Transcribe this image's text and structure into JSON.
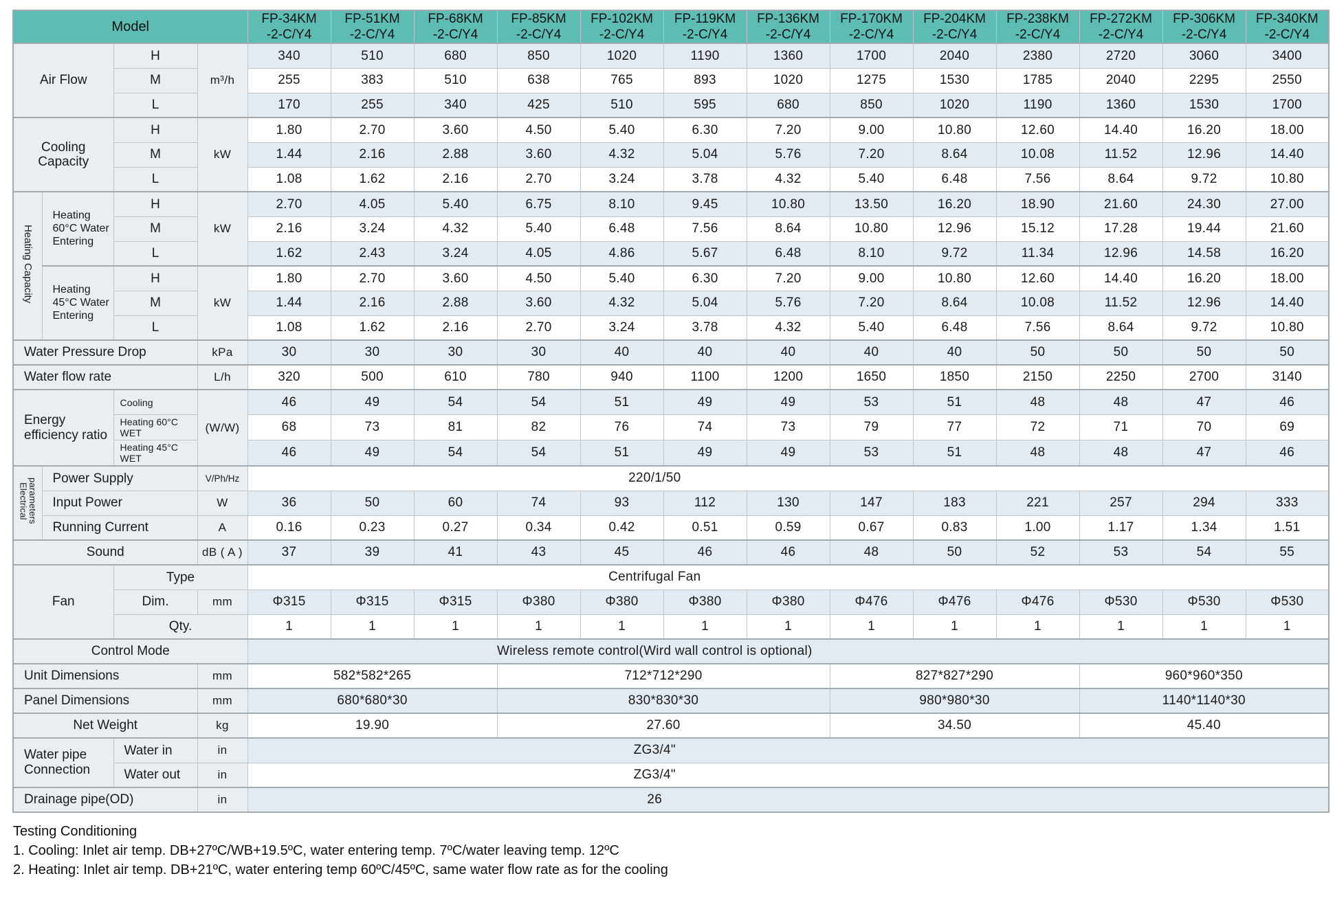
{
  "colors": {
    "header_bg": "#5ebdb2",
    "label_bg": "#e8eef1",
    "stripe_bg": "#e2eaf2",
    "row_white": "#ffffff",
    "grid": "#bfc6cb",
    "grid_heavy": "#a2aab0",
    "text": "#1b1b1b"
  },
  "table": {
    "model_label": "Model",
    "models": [
      {
        "l1": "FP-34KM",
        "l2": "-2-C/Y4"
      },
      {
        "l1": "FP-51KM",
        "l2": "-2-C/Y4"
      },
      {
        "l1": "FP-68KM",
        "l2": "-2-C/Y4"
      },
      {
        "l1": "FP-85KM",
        "l2": "-2-C/Y4"
      },
      {
        "l1": "FP-102KM",
        "l2": "-2-C/Y4"
      },
      {
        "l1": "FP-119KM",
        "l2": "-2-C/Y4"
      },
      {
        "l1": "FP-136KM",
        "l2": "-2-C/Y4"
      },
      {
        "l1": "FP-170KM",
        "l2": "-2-C/Y4"
      },
      {
        "l1": "FP-204KM",
        "l2": "-2-C/Y4"
      },
      {
        "l1": "FP-238KM",
        "l2": "-2-C/Y4"
      },
      {
        "l1": "FP-272KM",
        "l2": "-2-C/Y4"
      },
      {
        "l1": "FP-306KM",
        "l2": "-2-C/Y4"
      },
      {
        "l1": "FP-340KM",
        "l2": "-2-C/Y4"
      }
    ],
    "rows": [
      {
        "cells": [
          {
            "t": "Air Flow",
            "cs": 2,
            "rs": 3
          },
          {
            "t": "H"
          }
        ],
        "unit": {
          "t": "m³/h",
          "rs": 3
        },
        "data": {
          "v": [
            "340",
            "510",
            "680",
            "850",
            "1020",
            "1190",
            "1360",
            "1700",
            "2040",
            "2380",
            "2720",
            "3060",
            "3400"
          ]
        }
      },
      {
        "cells": [
          {
            "t": "M"
          }
        ],
        "data": {
          "v": [
            "255",
            "383",
            "510",
            "638",
            "765",
            "893",
            "1020",
            "1275",
            "1530",
            "1785",
            "2040",
            "2295",
            "2550"
          ]
        }
      },
      {
        "cells": [
          {
            "t": "L"
          }
        ],
        "data": {
          "v": [
            "170",
            "255",
            "340",
            "425",
            "510",
            "595",
            "680",
            "850",
            "1020",
            "1190",
            "1360",
            "1530",
            "1700"
          ]
        }
      },
      {
        "sec": true,
        "cells": [
          {
            "t": "Cooling Capacity",
            "cs": 2,
            "rs": 3
          },
          {
            "t": "H"
          }
        ],
        "unit": {
          "t": "kW",
          "rs": 3
        },
        "data": {
          "v": [
            "1.80",
            "2.70",
            "3.60",
            "4.50",
            "5.40",
            "6.30",
            "7.20",
            "9.00",
            "10.80",
            "12.60",
            "14.40",
            "16.20",
            "18.00"
          ]
        }
      },
      {
        "cells": [
          {
            "t": "M"
          }
        ],
        "data": {
          "v": [
            "1.44",
            "2.16",
            "2.88",
            "3.60",
            "4.32",
            "5.04",
            "5.76",
            "7.20",
            "8.64",
            "10.08",
            "11.52",
            "12.96",
            "14.40"
          ]
        }
      },
      {
        "cells": [
          {
            "t": "L"
          }
        ],
        "data": {
          "v": [
            "1.08",
            "1.62",
            "2.16",
            "2.70",
            "3.24",
            "3.78",
            "4.32",
            "5.40",
            "6.48",
            "7.56",
            "8.64",
            "9.72",
            "10.80"
          ]
        }
      },
      {
        "sec": true,
        "cells": [
          {
            "t": "Heating Capacity",
            "rs": 6,
            "cls": "rot rot6"
          },
          {
            "t": "Heating 60°C Water Entering",
            "rs": 3,
            "cls": "al md"
          },
          {
            "t": "H"
          }
        ],
        "unit": {
          "t": "kW",
          "rs": 3
        },
        "data": {
          "v": [
            "2.70",
            "4.05",
            "5.40",
            "6.75",
            "8.10",
            "9.45",
            "10.80",
            "13.50",
            "16.20",
            "18.90",
            "21.60",
            "24.30",
            "27.00"
          ]
        }
      },
      {
        "cells": [
          {
            "t": "M"
          }
        ],
        "data": {
          "v": [
            "2.16",
            "3.24",
            "4.32",
            "5.40",
            "6.48",
            "7.56",
            "8.64",
            "10.80",
            "12.96",
            "15.12",
            "17.28",
            "19.44",
            "21.60"
          ]
        }
      },
      {
        "cells": [
          {
            "t": "L"
          }
        ],
        "data": {
          "v": [
            "1.62",
            "2.43",
            "3.24",
            "4.05",
            "4.86",
            "5.67",
            "6.48",
            "8.10",
            "9.72",
            "11.34",
            "12.96",
            "14.58",
            "16.20"
          ]
        }
      },
      {
        "sec": true,
        "cells": [
          {
            "t": "Heating 45°C Water Entering",
            "rs": 3,
            "cls": "al md"
          },
          {
            "t": "H"
          }
        ],
        "unit": {
          "t": "kW",
          "rs": 3
        },
        "data": {
          "v": [
            "1.80",
            "2.70",
            "3.60",
            "4.50",
            "5.40",
            "6.30",
            "7.20",
            "9.00",
            "10.80",
            "12.60",
            "14.40",
            "16.20",
            "18.00"
          ]
        }
      },
      {
        "cells": [
          {
            "t": "M"
          }
        ],
        "data": {
          "v": [
            "1.44",
            "2.16",
            "2.88",
            "3.60",
            "4.32",
            "5.04",
            "5.76",
            "7.20",
            "8.64",
            "10.08",
            "11.52",
            "12.96",
            "14.40"
          ]
        }
      },
      {
        "cells": [
          {
            "t": "L"
          }
        ],
        "data": {
          "v": [
            "1.08",
            "1.62",
            "2.16",
            "2.70",
            "3.24",
            "3.78",
            "4.32",
            "5.40",
            "6.48",
            "7.56",
            "8.64",
            "9.72",
            "10.80"
          ]
        }
      },
      {
        "sec": true,
        "cells": [
          {
            "t": "Water Pressure Drop",
            "cs": 3,
            "cls": "al"
          }
        ],
        "unit": {
          "t": "kPa"
        },
        "data": {
          "v": [
            "30",
            "30",
            "30",
            "30",
            "40",
            "40",
            "40",
            "40",
            "40",
            "50",
            "50",
            "50",
            "50"
          ]
        }
      },
      {
        "sec": true,
        "cells": [
          {
            "t": "Water flow rate",
            "cs": 3,
            "cls": "al"
          }
        ],
        "unit": {
          "t": "L/h"
        },
        "data": {
          "v": [
            "320",
            "500",
            "610",
            "780",
            "940",
            "1100",
            "1200",
            "1650",
            "1850",
            "2150",
            "2250",
            "2700",
            "3140"
          ]
        }
      },
      {
        "sec": true,
        "cells": [
          {
            "t": "Energy efficiency ratio",
            "cs": 2,
            "rs": 3,
            "cls": "al"
          },
          {
            "t": "Cooling",
            "cls": "sm"
          }
        ],
        "unit": {
          "t": "(W/W)",
          "rs": 3
        },
        "data": {
          "v": [
            "46",
            "49",
            "54",
            "54",
            "51",
            "49",
            "49",
            "53",
            "51",
            "48",
            "48",
            "47",
            "46"
          ]
        }
      },
      {
        "cells": [
          {
            "t": "Heating 60°C WET",
            "cls": "sm"
          }
        ],
        "data": {
          "v": [
            "68",
            "73",
            "81",
            "82",
            "76",
            "74",
            "73",
            "79",
            "77",
            "72",
            "71",
            "70",
            "69"
          ]
        }
      },
      {
        "cells": [
          {
            "t": "Heating 45°C WET",
            "cls": "sm"
          }
        ],
        "data": {
          "v": [
            "46",
            "49",
            "54",
            "54",
            "51",
            "49",
            "49",
            "53",
            "51",
            "48",
            "48",
            "47",
            "46"
          ]
        }
      },
      {
        "sec": true,
        "cells": [
          {
            "t": "Electrical parameters",
            "rs": 3,
            "cls": "rot rot3"
          },
          {
            "t": "Power Supply",
            "cs": 2,
            "cls": "al"
          }
        ],
        "unit": {
          "t": "V/Ph/Hz",
          "cls": "sm"
        },
        "data": {
          "span": "220/1/50"
        }
      },
      {
        "cells": [
          {
            "t": "Input Power",
            "cs": 2,
            "cls": "al"
          }
        ],
        "unit": {
          "t": "W"
        },
        "data": {
          "v": [
            "36",
            "50",
            "60",
            "74",
            "93",
            "112",
            "130",
            "147",
            "183",
            "221",
            "257",
            "294",
            "333"
          ]
        }
      },
      {
        "cells": [
          {
            "t": "Running Current",
            "cs": 2,
            "cls": "al"
          }
        ],
        "unit": {
          "t": "A"
        },
        "data": {
          "v": [
            "0.16",
            "0.23",
            "0.27",
            "0.34",
            "0.42",
            "0.51",
            "0.59",
            "0.67",
            "0.83",
            "1.00",
            "1.17",
            "1.34",
            "1.51"
          ]
        }
      },
      {
        "sec": true,
        "cells": [
          {
            "t": "Sound",
            "cs": 3
          }
        ],
        "unit": {
          "t": "dB ( A )"
        },
        "data": {
          "v": [
            "37",
            "39",
            "41",
            "43",
            "45",
            "46",
            "46",
            "48",
            "50",
            "52",
            "53",
            "54",
            "55"
          ]
        }
      },
      {
        "sec": true,
        "cells": [
          {
            "t": "Fan",
            "cs": 2,
            "rs": 3
          },
          {
            "t": "Type",
            "cs": 2
          }
        ],
        "data": {
          "span": "Centrifugal Fan"
        }
      },
      {
        "cells": [
          {
            "t": "Dim."
          }
        ],
        "unit": {
          "t": "mm"
        },
        "data": {
          "v": [
            "Φ315",
            "Φ315",
            "Φ315",
            "Φ380",
            "Φ380",
            "Φ380",
            "Φ380",
            "Φ476",
            "Φ476",
            "Φ476",
            "Φ530",
            "Φ530",
            "Φ530"
          ]
        }
      },
      {
        "cells": [
          {
            "t": "Qty.",
            "cs": 2
          }
        ],
        "data": {
          "v": [
            "1",
            "1",
            "1",
            "1",
            "1",
            "1",
            "1",
            "1",
            "1",
            "1",
            "1",
            "1",
            "1"
          ]
        }
      },
      {
        "sec": true,
        "cells": [
          {
            "t": "Control Mode",
            "cs": 4
          }
        ],
        "data": {
          "span": "Wireless remote control(Wird wall control is optional)"
        }
      },
      {
        "sec": true,
        "cells": [
          {
            "t": "Unit Dimensions",
            "cs": 3,
            "cls": "al"
          }
        ],
        "unit": {
          "t": "mm"
        },
        "data": {
          "groups": [
            {
              "v": "582*582*265",
              "s": 3
            },
            {
              "v": "712*712*290",
              "s": 4
            },
            {
              "v": "827*827*290",
              "s": 3
            },
            {
              "v": "960*960*350",
              "s": 3
            }
          ]
        }
      },
      {
        "sec": true,
        "cells": [
          {
            "t": "Panel Dimensions",
            "cs": 3,
            "cls": "al"
          }
        ],
        "unit": {
          "t": "mm"
        },
        "data": {
          "groups": [
            {
              "v": "680*680*30",
              "s": 3
            },
            {
              "v": "830*830*30",
              "s": 4
            },
            {
              "v": "980*980*30",
              "s": 3
            },
            {
              "v": "1140*1140*30",
              "s": 3
            }
          ]
        }
      },
      {
        "sec": true,
        "cells": [
          {
            "t": "Net Weight",
            "cs": 3
          }
        ],
        "unit": {
          "t": "kg"
        },
        "data": {
          "groups": [
            {
              "v": "19.90",
              "s": 3
            },
            {
              "v": "27.60",
              "s": 4
            },
            {
              "v": "34.50",
              "s": 3
            },
            {
              "v": "45.40",
              "s": 3
            }
          ]
        }
      },
      {
        "sec": true,
        "cells": [
          {
            "t": "Water pipe Connection",
            "cs": 2,
            "rs": 2,
            "cls": "al"
          },
          {
            "t": "Water in",
            "cls": "al"
          }
        ],
        "unit": {
          "t": "in"
        },
        "data": {
          "span": "ZG3/4\""
        }
      },
      {
        "cells": [
          {
            "t": "Water out",
            "cls": "al"
          }
        ],
        "unit": {
          "t": "in"
        },
        "data": {
          "span": "ZG3/4\""
        }
      },
      {
        "sec": true,
        "cells": [
          {
            "t": "Drainage pipe(OD)",
            "cs": 3,
            "cls": "al"
          }
        ],
        "unit": {
          "t": "in"
        },
        "data": {
          "span": "26"
        }
      }
    ]
  },
  "footer": {
    "title": "Testing Conditioning",
    "notes": [
      "1. Cooling: Inlet air temp. DB+27ºC/WB+19.5ºC, water entering temp. 7ºC/water leaving temp. 12ºC",
      "2. Heating: Inlet air temp. DB+21ºC, water entering temp 60ºC/45ºC, same water flow rate as for the cooling"
    ]
  }
}
